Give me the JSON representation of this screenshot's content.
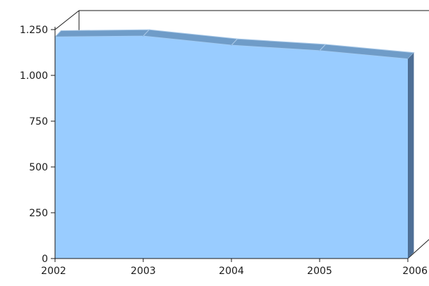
{
  "chart_data": {
    "type": "area",
    "title": "",
    "xlabel": "",
    "ylabel": "",
    "categories": [
      "2002",
      "2003",
      "2004",
      "2005",
      "2006"
    ],
    "series": [
      {
        "values": [
          1210,
          1215,
          1165,
          1135,
          1090
        ]
      }
    ],
    "ylim": [
      0,
      1250
    ],
    "yticks": [
      0,
      250,
      500,
      750,
      1000,
      1250
    ],
    "ytick_labels": [
      "0",
      "250",
      "500",
      "750",
      "1.000",
      "1.250"
    ],
    "grid": false,
    "legend": "none",
    "style": "3d",
    "colors": {
      "front": "#99CCFF",
      "top": "#6F9CC8",
      "side": "#4E6F96",
      "axis": "#1A1A1A"
    }
  }
}
